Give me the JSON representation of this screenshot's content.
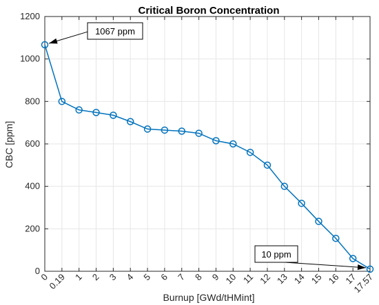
{
  "chart_data": {
    "type": "line",
    "title": "Critical Boron Concentration",
    "xlabel": "Burnup [GWd/tHMint]",
    "ylabel": "CBC [ppm]",
    "ylim": [
      0,
      1200
    ],
    "yticks": [
      0,
      200,
      400,
      600,
      800,
      1000,
      1200
    ],
    "categories": [
      "0",
      "0.19",
      "1",
      "2",
      "3",
      "4",
      "5",
      "6",
      "7",
      "8",
      "9",
      "10",
      "11",
      "12",
      "13",
      "14",
      "15",
      "16",
      "17",
      "17.57"
    ],
    "values": [
      1067,
      800,
      760,
      748,
      735,
      705,
      670,
      665,
      660,
      650,
      615,
      600,
      560,
      500,
      400,
      320,
      235,
      155,
      60,
      10
    ],
    "grid": true,
    "color": "#0072BD",
    "annotations": [
      {
        "text": "1067 ppm",
        "point_index": 0
      },
      {
        "text": "10 ppm",
        "point_index": 19
      }
    ]
  }
}
